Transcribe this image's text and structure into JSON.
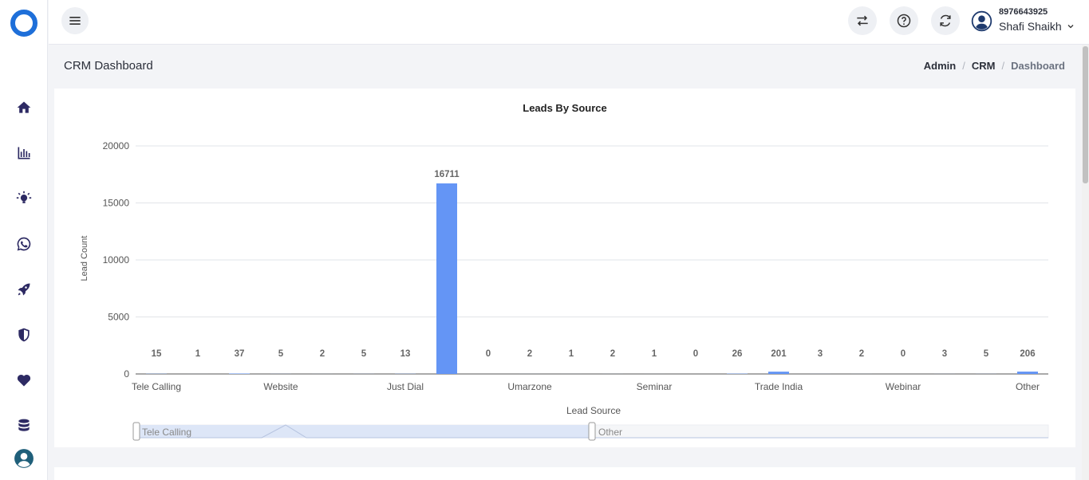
{
  "header": {
    "phone": "8976643925",
    "user_name": "Shafi Shaikh"
  },
  "sidebar": {
    "items": [
      {
        "icon": "home-icon"
      },
      {
        "icon": "bar-chart-icon"
      },
      {
        "icon": "lightbulb-icon"
      },
      {
        "icon": "whatsapp-icon"
      },
      {
        "icon": "rocket-icon"
      },
      {
        "icon": "shield-icon"
      },
      {
        "icon": "heart-icon"
      },
      {
        "icon": "database-icon"
      },
      {
        "icon": "user-circle-icon"
      }
    ]
  },
  "page": {
    "title": "CRM Dashboard",
    "breadcrumb": [
      "Admin",
      "CRM",
      "Dashboard"
    ]
  },
  "colors": {
    "bar": "#6495f5",
    "brand": "#1e6fd9",
    "icon": "#2d2a63"
  },
  "chart_data": {
    "type": "bar",
    "title": "Leads By Source",
    "xlabel": "Lead Source",
    "ylabel": "Lead Count",
    "ylim": [
      0,
      20000
    ],
    "yticks": [
      0,
      5000,
      10000,
      15000,
      20000
    ],
    "categories": [
      "Tele Calling",
      "",
      "",
      "Website",
      "",
      "",
      "Just Dial",
      "",
      "",
      "Umarzone",
      "",
      "",
      "Seminar",
      "",
      "",
      "Trade India",
      "",
      "",
      "Webinar",
      "",
      "",
      "Other"
    ],
    "values": [
      15,
      1,
      37,
      5,
      2,
      5,
      13,
      16711,
      0,
      2,
      1,
      2,
      1,
      0,
      26,
      201,
      3,
      2,
      0,
      3,
      5,
      206
    ],
    "grid": true,
    "zoom_slider": {
      "start_label": "Tele Calling",
      "end_label": "Other"
    }
  }
}
